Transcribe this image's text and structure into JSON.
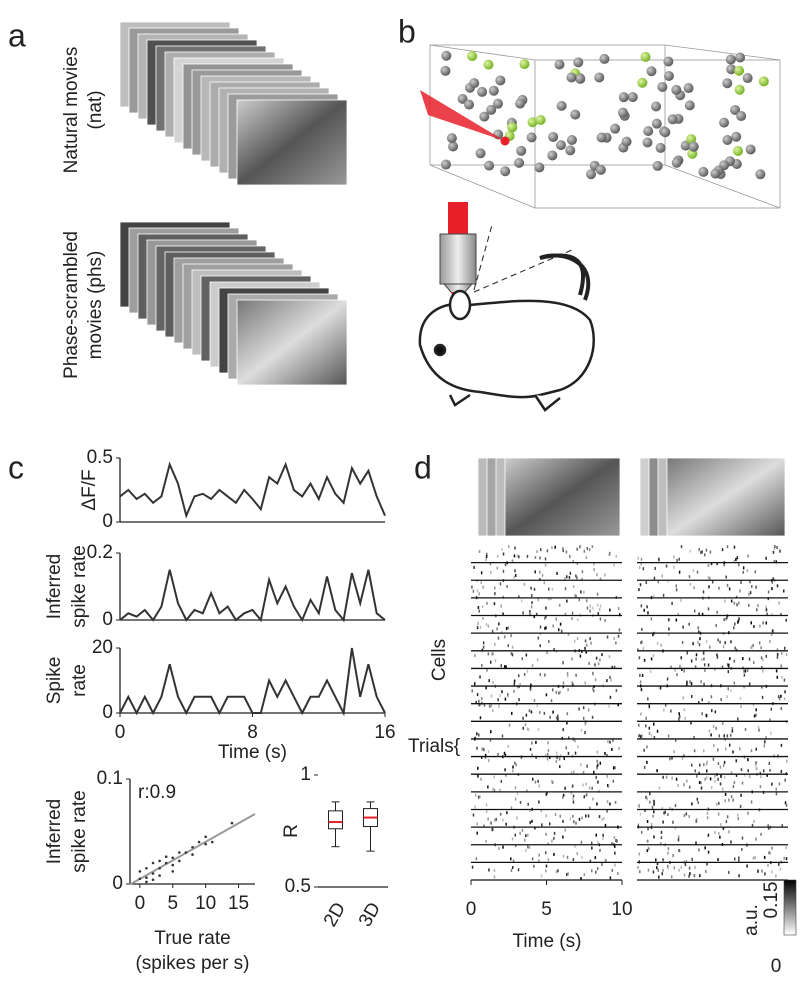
{
  "panel_a": {
    "label": "a",
    "nat_title": [
      "Natural movies",
      "(nat)"
    ],
    "phs_title": [
      "Phase-scrambled",
      "movies (phs)"
    ]
  },
  "panel_b": {
    "label": "b"
  },
  "panel_c": {
    "label": "c"
  },
  "panel_d": {
    "label": "d",
    "cells_label": "Cells",
    "trials_label": "Trials{",
    "xlabel": "Time (s)",
    "xlim": [
      0,
      10
    ],
    "xticks": [
      0,
      5,
      10
    ],
    "colorbar": {
      "label": "a.u.",
      "ticks": [
        0,
        0.15
      ]
    }
  },
  "chart_data": [
    {
      "type": "line",
      "ylabel": [
        "ΔF/F"
      ],
      "color": "#333333",
      "x": [
        0,
        0.5,
        1,
        1.5,
        2,
        2.5,
        3,
        3.5,
        4,
        4.5,
        5,
        5.5,
        6,
        6.5,
        7,
        7.5,
        8,
        8.5,
        9,
        9.5,
        10,
        10.5,
        11,
        11.5,
        12,
        12.5,
        13,
        13.5,
        14,
        14.5,
        15,
        15.5,
        16
      ],
      "values": [
        0.2,
        0.25,
        0.18,
        0.22,
        0.15,
        0.2,
        0.45,
        0.3,
        0.05,
        0.2,
        0.22,
        0.18,
        0.25,
        0.2,
        0.15,
        0.25,
        0.18,
        0.1,
        0.35,
        0.3,
        0.45,
        0.25,
        0.2,
        0.3,
        0.18,
        0.35,
        0.22,
        0.15,
        0.42,
        0.3,
        0.4,
        0.2,
        0.05
      ],
      "xlim": [
        0,
        16
      ],
      "ylim": [
        0,
        0.5
      ],
      "yticks": [
        0,
        0.5
      ]
    },
    {
      "type": "line",
      "ylabel": [
        "Inferred",
        "spike rate"
      ],
      "color": "#333333",
      "x": [
        0,
        0.5,
        1,
        1.5,
        2,
        2.5,
        3,
        3.5,
        4,
        4.5,
        5,
        5.5,
        6,
        6.5,
        7,
        7.5,
        8,
        8.5,
        9,
        9.5,
        10,
        10.5,
        11,
        11.5,
        12,
        12.5,
        13,
        13.5,
        14,
        14.5,
        15,
        15.5,
        16
      ],
      "values": [
        0,
        0.02,
        0.01,
        0.03,
        0,
        0.04,
        0.15,
        0.05,
        0,
        0.03,
        0.02,
        0.08,
        0.02,
        0.04,
        0,
        0.02,
        0.03,
        0,
        0.12,
        0.05,
        0.1,
        0.04,
        0,
        0.06,
        0.02,
        0.13,
        0.03,
        0,
        0.14,
        0.05,
        0.15,
        0.02,
        0
      ],
      "xlim": [
        0,
        16
      ],
      "ylim": [
        0,
        0.2
      ],
      "yticks": [
        0,
        0.2
      ]
    },
    {
      "type": "line",
      "ylabel": [
        "Spike",
        "rate"
      ],
      "xlabel": "Time (s)",
      "color": "#333333",
      "x": [
        0,
        0.5,
        1,
        1.5,
        2,
        2.5,
        3,
        3.5,
        4,
        4.5,
        5,
        5.5,
        6,
        6.5,
        7,
        7.5,
        8,
        8.5,
        9,
        9.5,
        10,
        10.5,
        11,
        11.5,
        12,
        12.5,
        13,
        13.5,
        14,
        14.5,
        15,
        15.5,
        16
      ],
      "values": [
        0,
        5,
        0,
        5,
        0,
        5,
        15,
        5,
        0,
        5,
        5,
        5,
        0,
        5,
        5,
        5,
        0,
        0,
        10,
        5,
        10,
        5,
        0,
        5,
        5,
        10,
        5,
        0,
        20,
        5,
        15,
        5,
        0
      ],
      "xlim": [
        0,
        16
      ],
      "xticks": [
        0,
        8,
        16
      ],
      "ylim": [
        0,
        20
      ],
      "yticks": [
        0,
        20
      ]
    },
    {
      "type": "scatter",
      "ylabel": [
        "Inferred",
        "spike rate"
      ],
      "xlabel": [
        "True rate",
        "(spikes per s)"
      ],
      "annotation": "r:0.9",
      "color": "#333333",
      "fit_color": "#999999",
      "x": [
        0,
        0,
        1,
        1,
        1,
        2,
        2,
        2,
        3,
        3,
        3,
        4,
        4,
        5,
        5,
        5,
        6,
        6,
        7,
        8,
        8,
        9,
        10,
        10,
        11,
        14
      ],
      "values": [
        0.005,
        0.012,
        0.006,
        0.015,
        0.002,
        0.01,
        0.02,
        0.004,
        0.015,
        0.022,
        0.008,
        0.02,
        0.026,
        0.018,
        0.025,
        0.012,
        0.03,
        0.022,
        0.03,
        0.035,
        0.028,
        0.04,
        0.038,
        0.045,
        0.04,
        0.058
      ],
      "xlim": [
        -1.5,
        17.5
      ],
      "xticks": [
        0,
        5,
        10,
        15
      ],
      "ylim": [
        0,
        0.1
      ],
      "yticks": [
        0,
        0.1
      ]
    },
    {
      "type": "box",
      "ylabel": [
        "R"
      ],
      "categories": [
        "2D",
        "3D"
      ],
      "median_color": "#e8202a",
      "boxes": [
        {
          "min": 0.68,
          "q1": 0.76,
          "median": 0.79,
          "q3": 0.84,
          "max": 0.88
        },
        {
          "min": 0.66,
          "q1": 0.77,
          "median": 0.81,
          "q3": 0.85,
          "max": 0.88
        }
      ],
      "ylim": [
        0.5,
        1
      ],
      "yticks": [
        0.5,
        1
      ]
    }
  ]
}
